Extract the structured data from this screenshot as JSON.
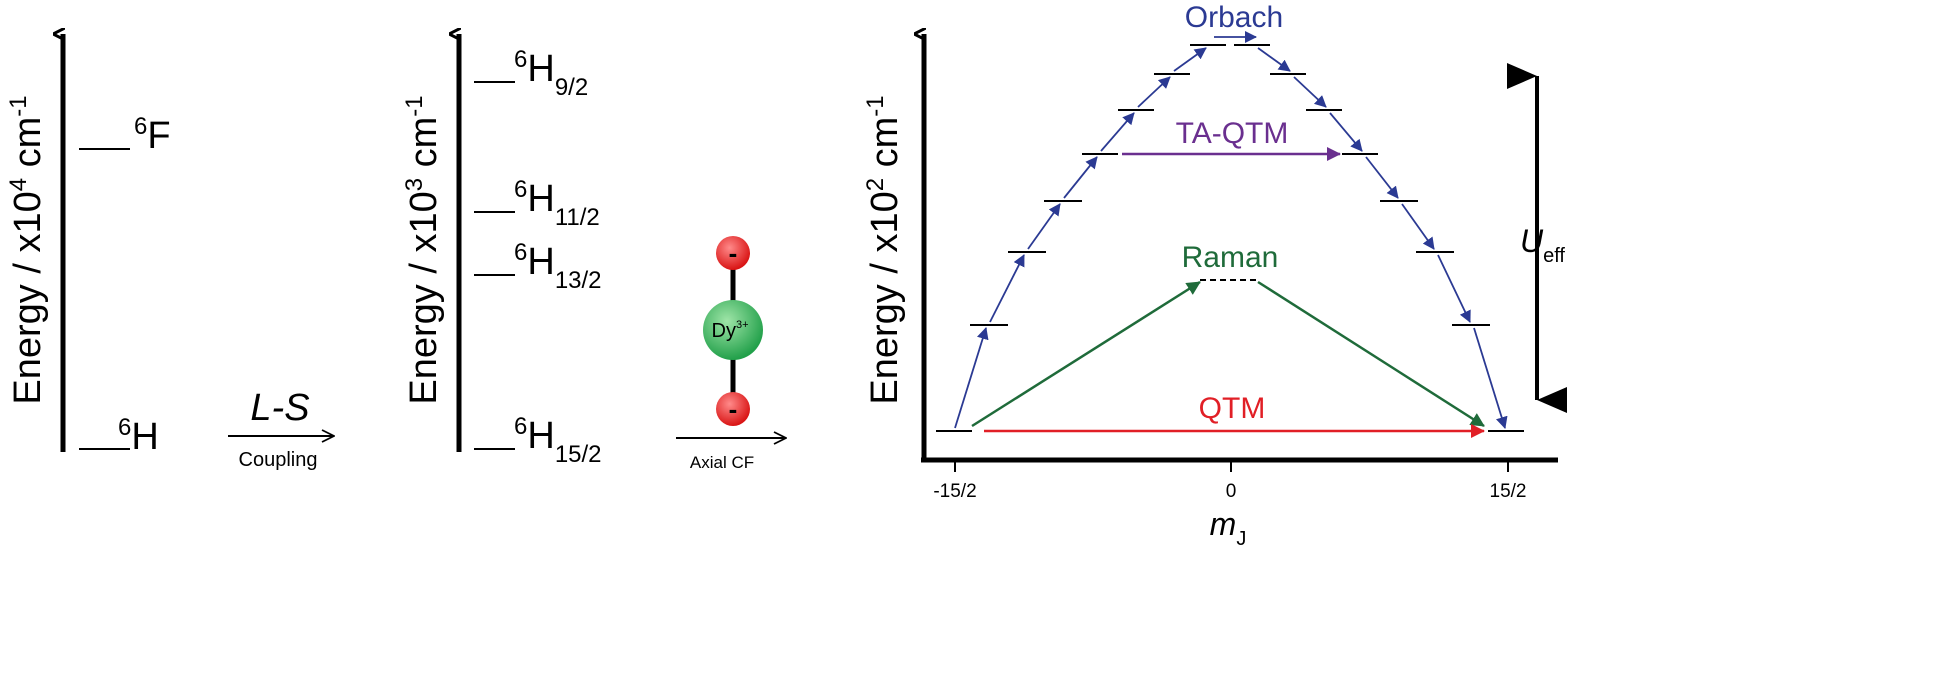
{
  "colors": {
    "orbach": "#2b3a93",
    "ta_qtm": "#6a2f8f",
    "raman": "#1f6b3a",
    "qtm": "#e11f26",
    "ion_red": "#e61e1e",
    "ion_green": "#2fa84f",
    "ink": "#000000"
  },
  "panel1": {
    "axis_title": "Energy / x10",
    "axis_exp": "4",
    "axis_unit": " cm",
    "axis_unit_exp": "-1",
    "levels": [
      {
        "sup": "6",
        "term": "F",
        "sub": ""
      },
      {
        "sup": "6",
        "term": "H",
        "sub": ""
      }
    ]
  },
  "transition1": {
    "label_main": "L-S",
    "label_sub": "Coupling"
  },
  "panel2": {
    "axis_title": "Energy / x10",
    "axis_exp": "3",
    "axis_unit": " cm",
    "axis_unit_exp": "-1",
    "levels": [
      {
        "sup": "6",
        "term": "H",
        "sub": "9/2"
      },
      {
        "sup": "6",
        "term": "H",
        "sub": "11/2"
      },
      {
        "sup": "6",
        "term": "H",
        "sub": "13/2"
      },
      {
        "sup": "6",
        "term": "H",
        "sub": "15/2"
      }
    ]
  },
  "ion": {
    "top_charge": "-",
    "center": "Dy",
    "center_sup": "3+",
    "bottom_charge": "-"
  },
  "transition2": {
    "label_sub": "Axial CF"
  },
  "panel3": {
    "axis_title": "Energy / x10",
    "axis_exp": "2",
    "axis_unit": " cm",
    "axis_unit_exp": "-1",
    "x_ticks": [
      "-15/2",
      "0",
      "15/2"
    ],
    "x_label_main": "m",
    "x_label_sub": "J",
    "processes": {
      "orbach": "Orbach",
      "ta_qtm": "TA-QTM",
      "raman": "Raman",
      "qtm": "QTM"
    },
    "barrier_main": "U",
    "barrier_sub": "eff"
  }
}
